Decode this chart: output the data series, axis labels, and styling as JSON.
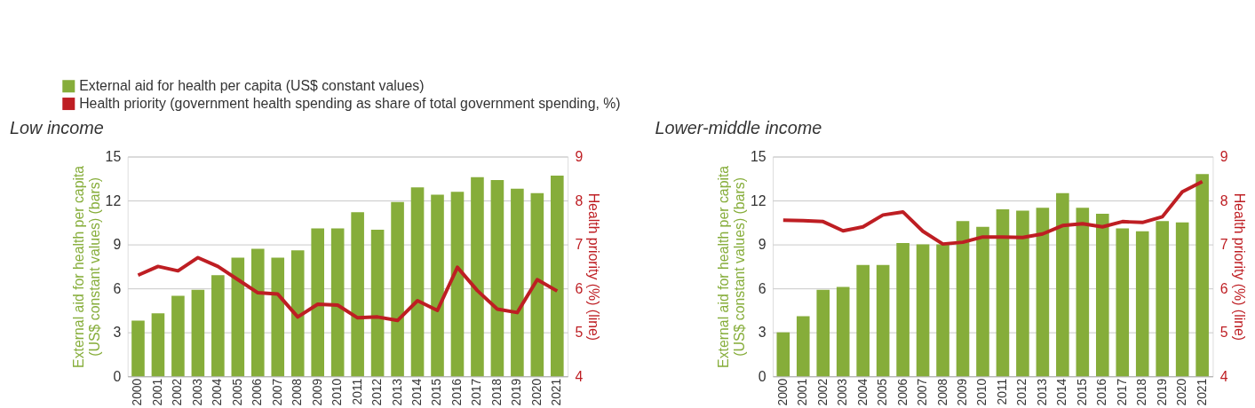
{
  "chart_data": [
    {
      "type": "bar",
      "title": "Low income",
      "ylabel": "External aid for health per capita (US$ constant values) (bars)",
      "y2label": "Health priority (%) (line)",
      "categories": [
        "2000",
        "2001",
        "2002",
        "2003",
        "2004",
        "2005",
        "2006",
        "2007",
        "2008",
        "2009",
        "2010",
        "2011",
        "2012",
        "2013",
        "2014",
        "2015",
        "2016",
        "2017",
        "2018",
        "2019",
        "2020",
        "2021"
      ],
      "series": [
        {
          "name": "External aid for health per capita (US$ constant values)",
          "color": "#86ad3a",
          "values": [
            3.8,
            4.3,
            5.5,
            5.9,
            6.9,
            8.1,
            8.7,
            8.1,
            8.6,
            10.1,
            10.1,
            11.2,
            10.0,
            11.9,
            12.9,
            12.4,
            12.6,
            13.6,
            13.4,
            12.8,
            12.5,
            13.7
          ]
        },
        {
          "name": "Health priority (government health spending as share of total government spending, %)",
          "type": "line",
          "axis": "y2",
          "color": "#be1e23",
          "values": [
            6.3,
            6.5,
            6.4,
            6.7,
            6.5,
            6.2,
            5.9,
            5.87,
            5.35,
            5.64,
            5.62,
            5.33,
            5.35,
            5.27,
            5.72,
            5.5,
            6.48,
            5.95,
            5.53,
            5.45,
            6.2,
            5.94
          ]
        }
      ],
      "ylim": [
        0,
        15
      ],
      "yticks": [
        0,
        3,
        6,
        9,
        12,
        15
      ],
      "y2lim": [
        4,
        9
      ],
      "y2ticks": [
        4,
        5,
        6,
        7,
        8,
        9
      ],
      "grid": "y",
      "legend": "top left",
      "marker": "none",
      "line_style": "solid"
    },
    {
      "type": "bar",
      "title": "Lower-middle income",
      "ylabel": "External aid for health per capita (US$ constant values) (bars)",
      "y2label": "Health priority (%) (line)",
      "categories": [
        "2000",
        "2001",
        "2002",
        "2003",
        "2004",
        "2005",
        "2006",
        "2007",
        "2008",
        "2009",
        "2010",
        "2011",
        "2012",
        "2013",
        "2014",
        "2015",
        "2016",
        "2017",
        "2018",
        "2019",
        "2020",
        "2021"
      ],
      "series": [
        {
          "name": "External aid for health per capita (US$ constant values)",
          "color": "#86ad3a",
          "values": [
            3.0,
            4.1,
            5.9,
            6.1,
            7.6,
            7.6,
            9.1,
            9.0,
            9.0,
            10.6,
            10.2,
            11.4,
            11.3,
            11.5,
            12.5,
            11.5,
            11.1,
            10.1,
            9.9,
            10.6,
            10.5,
            13.8
          ]
        },
        {
          "name": "Health priority (government health spending as share of total government spending, %)",
          "type": "line",
          "axis": "y2",
          "color": "#be1e23",
          "values": [
            7.55,
            7.54,
            7.52,
            7.31,
            7.4,
            7.67,
            7.74,
            7.3,
            7.01,
            7.05,
            7.17,
            7.17,
            7.16,
            7.24,
            7.43,
            7.47,
            7.4,
            7.52,
            7.5,
            7.63,
            8.2,
            8.43
          ]
        }
      ],
      "ylim": [
        0,
        15
      ],
      "yticks": [
        0,
        3,
        6,
        9,
        12,
        15
      ],
      "y2lim": [
        4,
        9
      ],
      "y2ticks": [
        4,
        5,
        6,
        7,
        8,
        9
      ],
      "grid": "y",
      "legend": "top left",
      "marker": "none",
      "line_style": "solid"
    }
  ]
}
